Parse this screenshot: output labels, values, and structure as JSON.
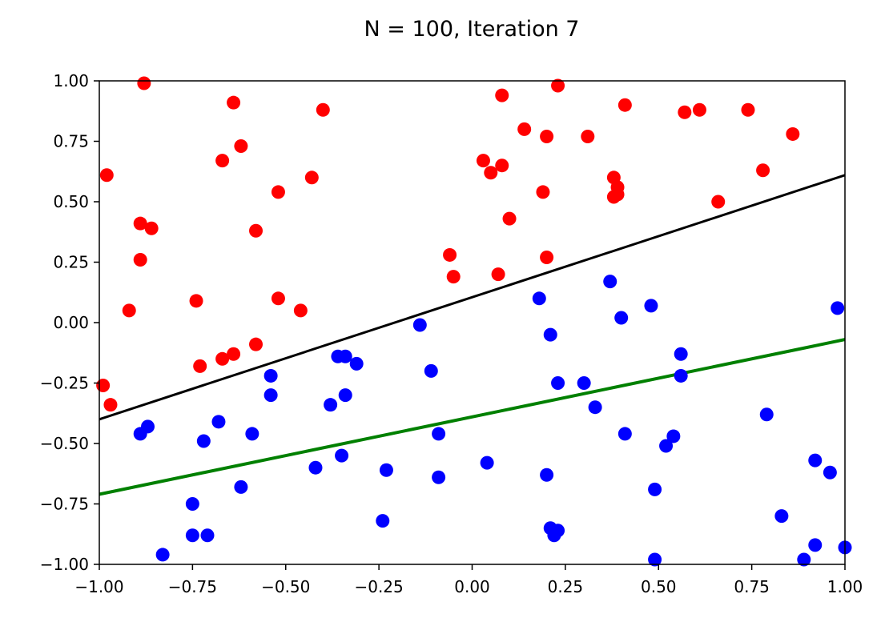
{
  "chart_data": {
    "type": "scatter",
    "title": "N = 100, Iteration 7",
    "xlabel": "",
    "ylabel": "",
    "xlim": [
      -1.0,
      1.0
    ],
    "ylim": [
      -1.0,
      1.0
    ],
    "grid": false,
    "x_ticks": [
      "−1.00",
      "−0.75",
      "−0.50",
      "−0.25",
      "0.00",
      "0.25",
      "0.50",
      "0.75",
      "1.00"
    ],
    "y_ticks": [
      "−1.00",
      "−0.75",
      "−0.50",
      "−0.25",
      "0.00",
      "0.25",
      "0.50",
      "0.75",
      "1.00"
    ],
    "x_tick_values": [
      -1.0,
      -0.75,
      -0.5,
      -0.25,
      0.0,
      0.25,
      0.5,
      0.75,
      1.0
    ],
    "y_tick_values": [
      -1.0,
      -0.75,
      -0.5,
      -0.25,
      0.0,
      0.25,
      0.5,
      0.75,
      1.0
    ],
    "series": [
      {
        "color": "#ff0000",
        "points": [
          [
            -0.88,
            0.99
          ],
          [
            -0.98,
            0.61
          ],
          [
            -0.89,
            0.41
          ],
          [
            -0.86,
            0.39
          ],
          [
            -0.89,
            0.26
          ],
          [
            -0.92,
            0.05
          ],
          [
            -0.99,
            -0.26
          ],
          [
            -0.97,
            -0.34
          ],
          [
            -0.74,
            0.09
          ],
          [
            -0.73,
            -0.18
          ],
          [
            -0.67,
            -0.15
          ],
          [
            -0.64,
            -0.13
          ],
          [
            -0.67,
            0.67
          ],
          [
            -0.64,
            0.91
          ],
          [
            -0.62,
            0.73
          ],
          [
            -0.58,
            0.38
          ],
          [
            -0.58,
            -0.09
          ],
          [
            -0.52,
            0.54
          ],
          [
            -0.52,
            0.1
          ],
          [
            -0.46,
            0.05
          ],
          [
            -0.43,
            0.6
          ],
          [
            -0.4,
            0.88
          ],
          [
            -0.06,
            0.28
          ],
          [
            -0.05,
            0.19
          ],
          [
            0.03,
            0.67
          ],
          [
            0.05,
            0.62
          ],
          [
            0.08,
            0.65
          ],
          [
            0.08,
            0.94
          ],
          [
            0.07,
            0.2
          ],
          [
            0.1,
            0.43
          ],
          [
            0.14,
            0.8
          ],
          [
            0.2,
            0.77
          ],
          [
            0.19,
            0.54
          ],
          [
            0.2,
            0.27
          ],
          [
            0.23,
            0.98
          ],
          [
            0.31,
            0.77
          ],
          [
            0.38,
            0.6
          ],
          [
            0.39,
            0.56
          ],
          [
            0.38,
            0.52
          ],
          [
            0.39,
            0.53
          ],
          [
            0.41,
            0.9
          ],
          [
            0.57,
            0.87
          ],
          [
            0.61,
            0.88
          ],
          [
            0.66,
            0.5
          ],
          [
            0.74,
            0.88
          ],
          [
            0.78,
            0.63
          ],
          [
            0.86,
            0.78
          ]
        ]
      },
      {
        "color": "#0000ff",
        "points": [
          [
            -0.89,
            -0.46
          ],
          [
            -0.87,
            -0.43
          ],
          [
            -0.83,
            -0.96
          ],
          [
            -0.75,
            -0.75
          ],
          [
            -0.75,
            -0.88
          ],
          [
            -0.72,
            -0.49
          ],
          [
            -0.71,
            -0.88
          ],
          [
            -0.68,
            -0.41
          ],
          [
            -0.62,
            -0.68
          ],
          [
            -0.59,
            -0.46
          ],
          [
            -0.54,
            -0.22
          ],
          [
            -0.54,
            -0.3
          ],
          [
            -0.42,
            -0.6
          ],
          [
            -0.38,
            -0.34
          ],
          [
            -0.36,
            -0.14
          ],
          [
            -0.35,
            -0.55
          ],
          [
            -0.34,
            -0.14
          ],
          [
            -0.34,
            -0.3
          ],
          [
            -0.31,
            -0.17
          ],
          [
            -0.24,
            -0.82
          ],
          [
            -0.23,
            -0.61
          ],
          [
            -0.14,
            -0.01
          ],
          [
            -0.11,
            -0.2
          ],
          [
            -0.09,
            -0.46
          ],
          [
            -0.09,
            -0.64
          ],
          [
            0.04,
            -0.58
          ],
          [
            0.18,
            0.1
          ],
          [
            0.21,
            -0.05
          ],
          [
            0.2,
            -0.63
          ],
          [
            0.21,
            -0.85
          ],
          [
            0.23,
            -0.86
          ],
          [
            0.22,
            -0.88
          ],
          [
            0.23,
            -0.25
          ],
          [
            0.3,
            -0.25
          ],
          [
            0.33,
            -0.35
          ],
          [
            0.37,
            0.17
          ],
          [
            0.4,
            0.02
          ],
          [
            0.41,
            -0.46
          ],
          [
            0.48,
            0.07
          ],
          [
            0.49,
            -0.69
          ],
          [
            0.49,
            -0.98
          ],
          [
            0.52,
            -0.51
          ],
          [
            0.54,
            -0.47
          ],
          [
            0.56,
            -0.13
          ],
          [
            0.56,
            -0.22
          ],
          [
            0.79,
            -0.38
          ],
          [
            0.83,
            -0.8
          ],
          [
            0.89,
            -0.98
          ],
          [
            0.92,
            -0.92
          ],
          [
            0.92,
            -0.57
          ],
          [
            0.96,
            -0.62
          ],
          [
            0.98,
            0.06
          ],
          [
            1.0,
            -0.93
          ]
        ]
      }
    ],
    "lines": [
      {
        "color": "#000000",
        "x": [
          -1.0,
          1.0
        ],
        "y": [
          -0.4,
          0.61
        ]
      },
      {
        "color": "#008000",
        "x": [
          -1.0,
          1.0
        ],
        "y": [
          -0.71,
          -0.07
        ]
      }
    ]
  }
}
